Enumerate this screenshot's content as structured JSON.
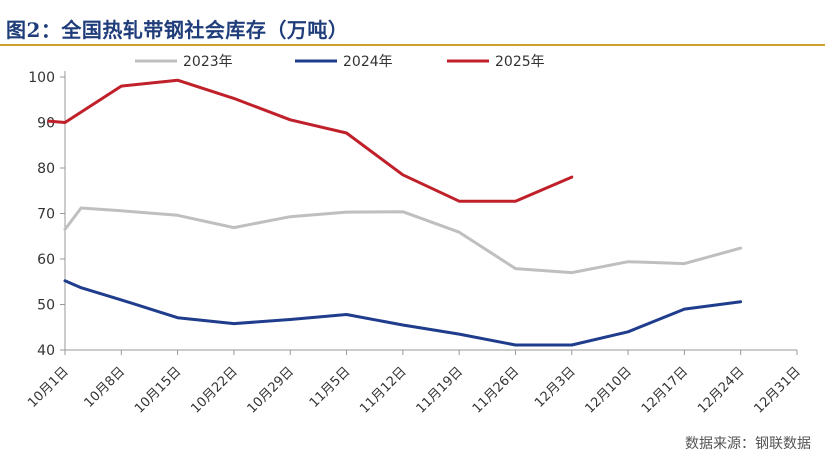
{
  "chart_data": {
    "type": "line",
    "title": "图2：全国热轧带钢社会库存（万吨）",
    "source": "数据来源：钢联数据",
    "categories": [
      "10月1日",
      "10月8日",
      "10月15日",
      "10月22日",
      "10月29日",
      "11月5日",
      "11月12日",
      "11月19日",
      "11月26日",
      "12月3日",
      "12月10日",
      "12月17日",
      "12月24日",
      "12月31日"
    ],
    "ylim": [
      40,
      100
    ],
    "yticks": [
      40,
      50,
      60,
      70,
      80,
      90,
      100
    ],
    "grid": false,
    "legend_position": "top",
    "series": [
      {
        "name": "2023年",
        "color": "#bfbfbf",
        "points": [
          {
            "x": "10月1日",
            "y": 66.5
          },
          {
            "x": "10月3日",
            "y": 71.2
          },
          {
            "x": "10月8日",
            "y": 70.6
          },
          {
            "x": "10月15日",
            "y": 69.6
          },
          {
            "x": "10月22日",
            "y": 66.9
          },
          {
            "x": "10月29日",
            "y": 69.3
          },
          {
            "x": "11月5日",
            "y": 70.3
          },
          {
            "x": "11月12日",
            "y": 70.4
          },
          {
            "x": "11月19日",
            "y": 65.9
          },
          {
            "x": "11月26日",
            "y": 57.9
          },
          {
            "x": "12月3日",
            "y": 57.0
          },
          {
            "x": "12月10日",
            "y": 59.4
          },
          {
            "x": "12月17日",
            "y": 59.0
          },
          {
            "x": "12月24日",
            "y": 62.4
          }
        ]
      },
      {
        "name": "2024年",
        "color": "#1f3d8c",
        "points": [
          {
            "x": "10月1日",
            "y": 55.2
          },
          {
            "x": "10月3日",
            "y": 53.7
          },
          {
            "x": "10月8日",
            "y": 51.0
          },
          {
            "x": "10月15日",
            "y": 47.1
          },
          {
            "x": "10月22日",
            "y": 45.8
          },
          {
            "x": "10月29日",
            "y": 46.7
          },
          {
            "x": "11月5日",
            "y": 47.8
          },
          {
            "x": "11月12日",
            "y": 45.5
          },
          {
            "x": "11月19日",
            "y": 43.5
          },
          {
            "x": "11月26日",
            "y": 41.1
          },
          {
            "x": "12月3日",
            "y": 41.1
          },
          {
            "x": "12月10日",
            "y": 44.0
          },
          {
            "x": "12月17日",
            "y": 49.0
          },
          {
            "x": "12月24日",
            "y": 50.6
          }
        ]
      },
      {
        "name": "2025年",
        "color": "#c0202a",
        "points": [
          {
            "x": "9月30日",
            "y": 90.3
          },
          {
            "x": "10月1日",
            "y": 90.0
          },
          {
            "x": "10月8日",
            "y": 98.0
          },
          {
            "x": "10月15日",
            "y": 99.3
          },
          {
            "x": "10月22日",
            "y": 95.3
          },
          {
            "x": "10月29日",
            "y": 90.6
          },
          {
            "x": "11月5日",
            "y": 87.7
          },
          {
            "x": "11月12日",
            "y": 78.5
          },
          {
            "x": "11月19日",
            "y": 72.7
          },
          {
            "x": "11月26日",
            "y": 72.7
          },
          {
            "x": "12月3日",
            "y": 78.0
          }
        ]
      }
    ]
  }
}
